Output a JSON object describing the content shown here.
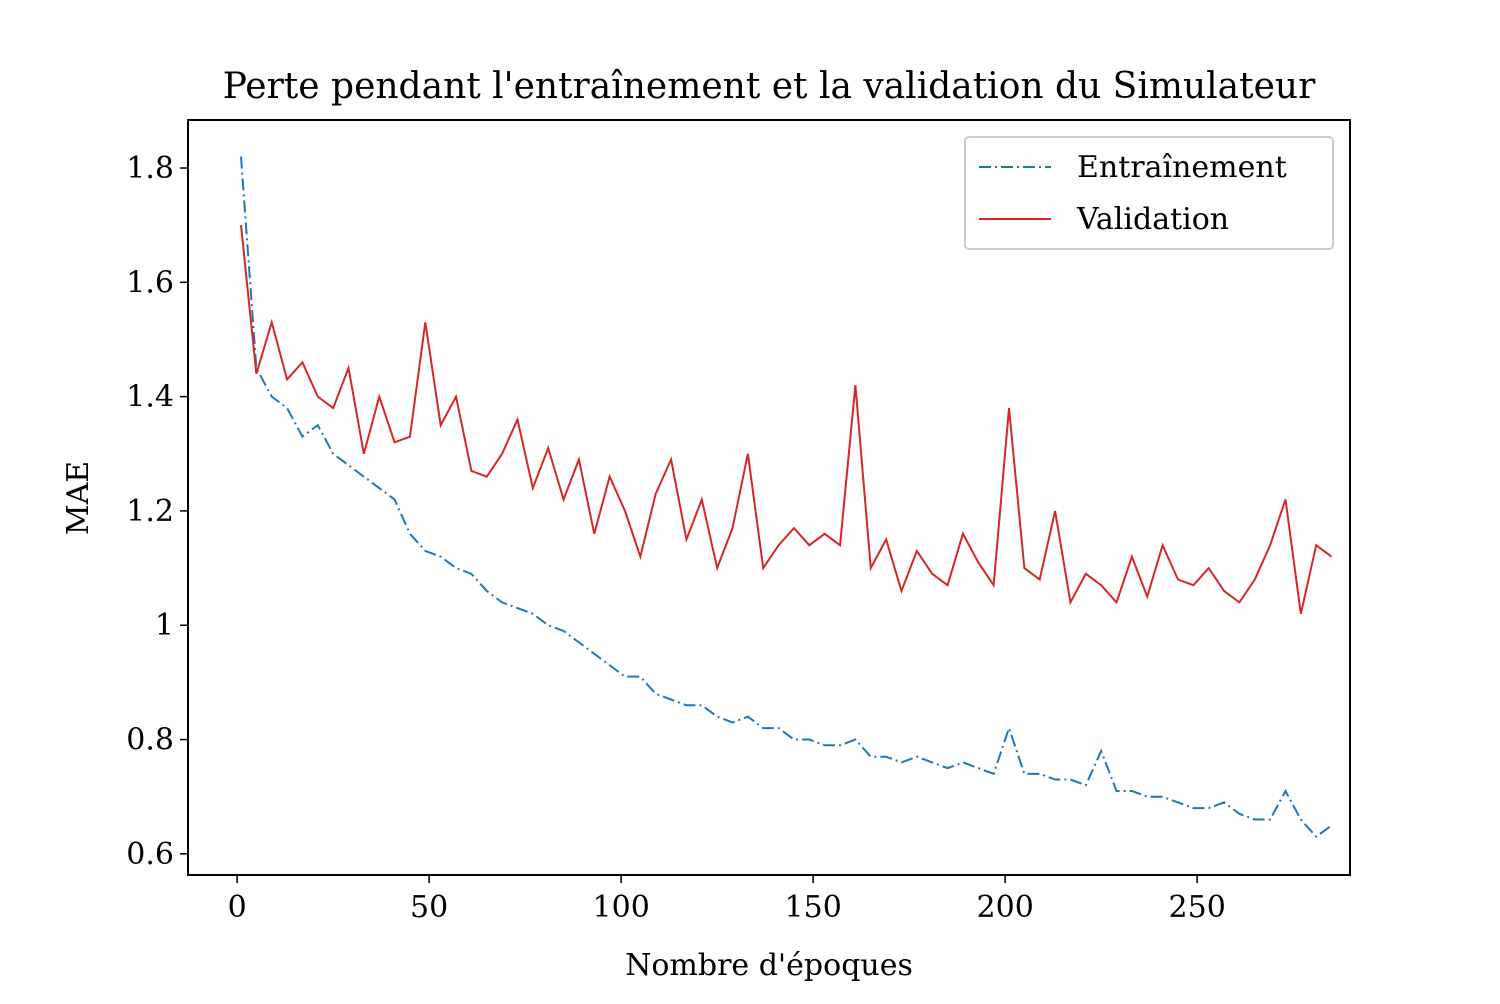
{
  "chart_data": {
    "type": "line",
    "title": "Perte pendant l'entraînement et la validation du Simulateur",
    "x_label": "Nombre d'époques",
    "y_label": "MAE",
    "x": [
      1,
      5,
      9,
      13,
      17,
      21,
      25,
      29,
      33,
      37,
      41,
      45,
      49,
      53,
      57,
      61,
      65,
      69,
      73,
      77,
      81,
      85,
      89,
      93,
      97,
      101,
      105,
      109,
      113,
      117,
      121,
      125,
      129,
      133,
      137,
      141,
      145,
      149,
      153,
      157,
      161,
      165,
      169,
      173,
      177,
      181,
      185,
      189,
      193,
      197,
      201,
      205,
      209,
      213,
      217,
      221,
      225,
      229,
      233,
      237,
      241,
      245,
      249,
      253,
      257,
      261,
      265,
      269,
      273,
      277,
      281,
      285
    ],
    "series": [
      {
        "name": "Entraînement",
        "color": "#1f77b4",
        "dash": "dashdot",
        "values": [
          1.82,
          1.45,
          1.4,
          1.38,
          1.33,
          1.35,
          1.3,
          1.28,
          1.26,
          1.24,
          1.22,
          1.16,
          1.13,
          1.12,
          1.1,
          1.09,
          1.06,
          1.04,
          1.03,
          1.02,
          1.0,
          0.99,
          0.97,
          0.95,
          0.93,
          0.91,
          0.91,
          0.88,
          0.87,
          0.86,
          0.86,
          0.84,
          0.83,
          0.84,
          0.82,
          0.82,
          0.8,
          0.8,
          0.79,
          0.79,
          0.8,
          0.77,
          0.77,
          0.76,
          0.77,
          0.76,
          0.75,
          0.76,
          0.75,
          0.74,
          0.82,
          0.74,
          0.74,
          0.73,
          0.73,
          0.72,
          0.78,
          0.71,
          0.71,
          0.7,
          0.7,
          0.69,
          0.68,
          0.68,
          0.69,
          0.67,
          0.66,
          0.66,
          0.71,
          0.66,
          0.63,
          0.65
        ]
      },
      {
        "name": "Validation",
        "color": "#d62728",
        "dash": "solid",
        "values": [
          1.7,
          1.44,
          1.53,
          1.43,
          1.46,
          1.4,
          1.38,
          1.45,
          1.3,
          1.4,
          1.32,
          1.33,
          1.53,
          1.35,
          1.4,
          1.27,
          1.26,
          1.3,
          1.36,
          1.24,
          1.31,
          1.22,
          1.29,
          1.16,
          1.26,
          1.2,
          1.12,
          1.23,
          1.29,
          1.15,
          1.22,
          1.1,
          1.17,
          1.3,
          1.1,
          1.14,
          1.17,
          1.14,
          1.16,
          1.14,
          1.42,
          1.1,
          1.15,
          1.06,
          1.13,
          1.09,
          1.07,
          1.16,
          1.11,
          1.07,
          1.38,
          1.1,
          1.08,
          1.2,
          1.04,
          1.09,
          1.07,
          1.04,
          1.12,
          1.05,
          1.14,
          1.08,
          1.07,
          1.1,
          1.06,
          1.04,
          1.08,
          1.14,
          1.22,
          1.02,
          1.14,
          1.12
        ]
      }
    ],
    "xlim": [
      -12.8,
      289.8
    ],
    "xticks": [
      0,
      50,
      100,
      150,
      200,
      250
    ],
    "ylim": [
      0.563,
      1.884
    ],
    "yticks": [
      0.6,
      0.8,
      1.0,
      1.2,
      1.4,
      1.6,
      1.8
    ],
    "legend": "upper right",
    "grid": false
  }
}
